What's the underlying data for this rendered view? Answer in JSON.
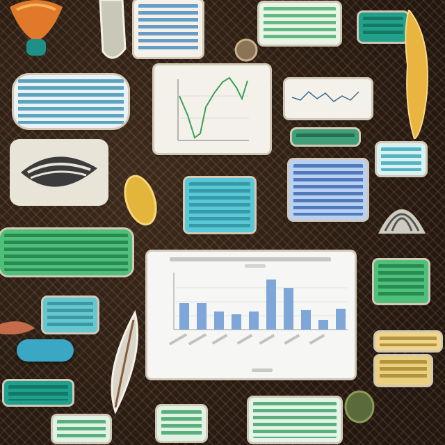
{
  "colors": {
    "background": "#2e1e14",
    "card_white": "#f4f1ea",
    "card_green": "#4fbf7a",
    "card_teal": "#54c8c8",
    "card_blue": "#a9c6ef",
    "card_yellow": "#efd58a",
    "bar_fill": "#7ea6d8",
    "line_color": "#3aa055"
  },
  "icons": [
    "shell-icon",
    "bone-icon",
    "seed-icon",
    "leaf-icon",
    "beetle-icon",
    "feather-icon",
    "pebble-icon"
  ]
}
